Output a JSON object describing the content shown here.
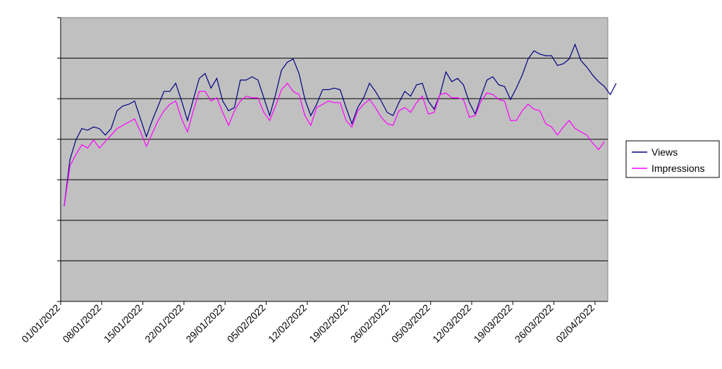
{
  "chart_data": {
    "type": "line",
    "x_tick_labels": [
      "01/01/2022",
      "08/01/2022",
      "15/01/2022",
      "22/01/2022",
      "29/01/2022",
      "05/02/2022",
      "12/02/2022",
      "19/02/2022",
      "26/02/2022",
      "05/03/2022",
      "12/03/2022",
      "19/03/2022",
      "26/03/2022",
      "02/04/2022"
    ],
    "y_ticks": 7,
    "legend_position": "right",
    "grid": true,
    "plot_background": "#c0c0c0",
    "series": [
      {
        "name": "Views",
        "color": "#000080",
        "values": [
          0.0,
          2.9,
          4.1,
          4.8,
          4.7,
          4.9,
          4.8,
          4.4,
          4.8,
          5.9,
          6.2,
          6.3,
          6.5,
          5.4,
          4.3,
          5.3,
          6.2,
          7.1,
          7.1,
          7.6,
          6.5,
          5.3,
          6.6,
          7.9,
          8.2,
          7.3,
          7.9,
          6.5,
          5.9,
          6.1,
          7.8,
          7.8,
          8.0,
          7.8,
          6.7,
          5.6,
          6.9,
          8.4,
          8.9,
          9.1,
          8.2,
          6.6,
          5.6,
          6.3,
          7.2,
          7.2,
          7.3,
          7.2,
          6.1,
          5.1,
          6.1,
          6.7,
          7.6,
          7.1,
          6.5,
          5.8,
          5.6,
          6.4,
          7.1,
          6.8,
          7.5,
          7.6,
          6.5,
          6.0,
          6.9,
          8.3,
          7.7,
          7.9,
          7.5,
          6.4,
          5.7,
          6.8,
          7.8,
          8.0,
          7.5,
          7.4,
          6.6,
          7.3,
          8.1,
          9.1,
          9.6,
          9.4,
          9.3,
          9.3,
          8.7,
          8.8,
          9.1,
          10.0,
          9.0,
          8.6,
          8.1,
          7.7,
          7.4,
          6.9,
          7.6
        ]
      },
      {
        "name": "Impressions",
        "color": "#ff00ff",
        "values": [
          0.0,
          2.5,
          3.2,
          3.8,
          3.6,
          4.1,
          3.6,
          4.0,
          4.4,
          4.8,
          5.0,
          5.2,
          5.4,
          4.6,
          3.7,
          4.5,
          5.3,
          5.9,
          6.3,
          6.5,
          5.4,
          4.6,
          5.9,
          7.1,
          7.1,
          6.5,
          6.7,
          5.8,
          5.0,
          5.9,
          6.5,
          6.8,
          6.7,
          6.7,
          5.8,
          5.3,
          6.2,
          7.2,
          7.6,
          7.1,
          6.9,
          5.6,
          5.0,
          6.1,
          6.3,
          6.5,
          6.4,
          6.4,
          5.3,
          4.9,
          5.9,
          6.3,
          6.6,
          6.1,
          5.5,
          5.1,
          5.0,
          5.9,
          6.1,
          5.8,
          6.4,
          6.8,
          5.7,
          5.8,
          6.9,
          7.0,
          6.7,
          6.7,
          6.6,
          5.5,
          5.6,
          6.5,
          7.0,
          6.9,
          6.6,
          6.5,
          5.3,
          5.3,
          5.9,
          6.3,
          6.0,
          5.9,
          5.1,
          4.9,
          4.4,
          4.9,
          5.3,
          4.8,
          4.6,
          4.4,
          3.9,
          3.5,
          4.0
        ]
      }
    ]
  }
}
